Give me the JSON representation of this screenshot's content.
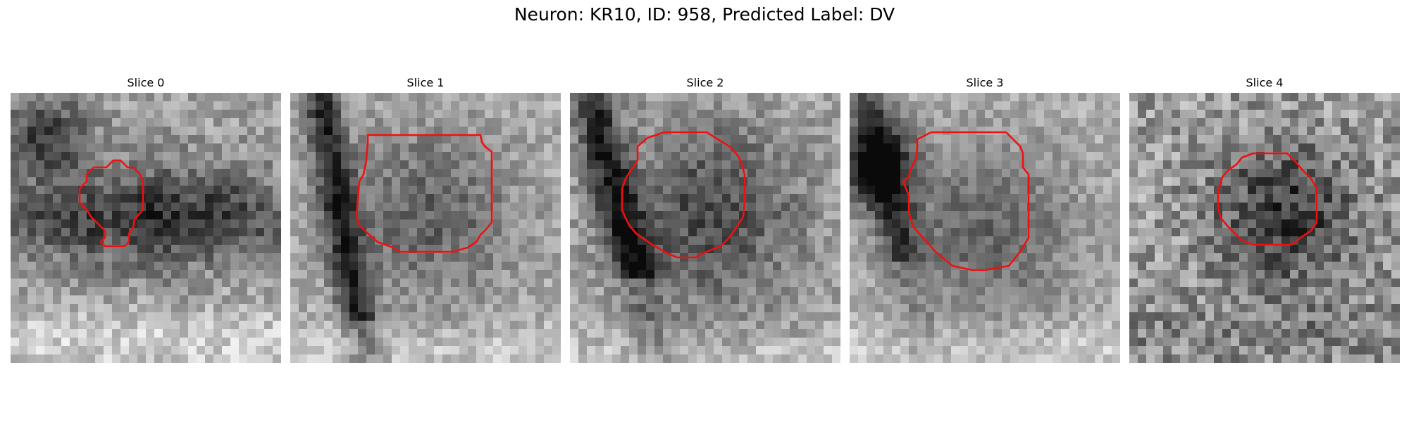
{
  "figure": {
    "title": "Neuron: KR10, ID: 958, Predicted Label: DV"
  },
  "colors": {
    "contour": "#ee1111",
    "background": "#ffffff"
  },
  "slices": [
    {
      "title": "Slice 0"
    },
    {
      "title": "Slice 1"
    },
    {
      "title": "Slice 2"
    },
    {
      "title": "Slice 3"
    },
    {
      "title": "Slice 4"
    }
  ]
}
